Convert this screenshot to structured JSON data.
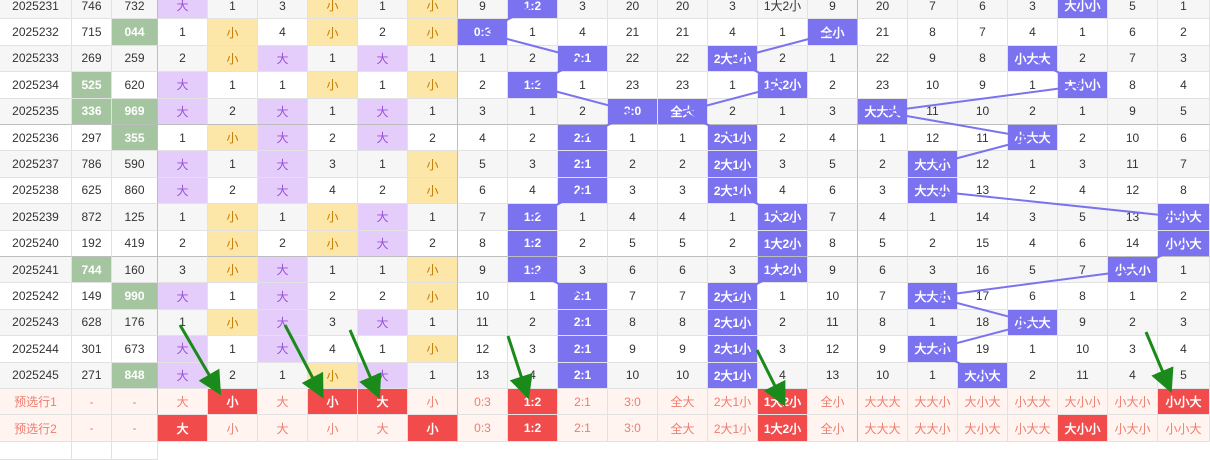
{
  "rows": [
    {
      "label": "2025231",
      "v1": "746",
      "v2": "732",
      "cells": [
        "大",
        "1",
        "3",
        "小",
        "1",
        "小",
        "9",
        "1:2",
        "3",
        "20",
        "20",
        "3",
        "1大2小",
        "9",
        "20",
        "7",
        "6",
        "3",
        "大小小",
        "5",
        "1"
      ]
    },
    {
      "label": "2025232",
      "v1": "715",
      "v2": "044",
      "cells": [
        "1",
        "小",
        "4",
        "小",
        "2",
        "小",
        "0:3",
        "1",
        "4",
        "21",
        "21",
        "4",
        "1",
        "全小",
        "21",
        "8",
        "7",
        "4",
        "1",
        "6",
        "2"
      ]
    },
    {
      "label": "2025233",
      "v1": "269",
      "v2": "259",
      "cells": [
        "2",
        "小",
        "大",
        "1",
        "大",
        "1",
        "1",
        "2",
        "2:1",
        "22",
        "22",
        "2大1小",
        "2",
        "1",
        "22",
        "9",
        "8",
        "小大大",
        "2",
        "7",
        "3"
      ]
    },
    {
      "label": "2025234",
      "v1": "525",
      "v2": "620",
      "cells": [
        "大",
        "1",
        "1",
        "小",
        "1",
        "小",
        "2",
        "1:2",
        "1",
        "23",
        "23",
        "1",
        "1大2小",
        "2",
        "23",
        "10",
        "9",
        "1",
        "大小小",
        "8",
        "4"
      ]
    },
    {
      "label": "2025235",
      "v1": "336",
      "v2": "969",
      "cells": [
        "大",
        "2",
        "大",
        "1",
        "大",
        "1",
        "3",
        "1",
        "2",
        "3:0",
        "全大",
        "2",
        "1",
        "3",
        "大大大",
        "11",
        "10",
        "2",
        "1",
        "9",
        "5"
      ]
    },
    {
      "label": "2025236",
      "v1": "297",
      "v2": "355",
      "cells": [
        "1",
        "小",
        "大",
        "2",
        "大",
        "2",
        "4",
        "2",
        "2:1",
        "1",
        "1",
        "2大1小",
        "2",
        "4",
        "1",
        "12",
        "11",
        "小大大",
        "2",
        "10",
        "6"
      ]
    },
    {
      "label": "2025237",
      "v1": "786",
      "v2": "590",
      "cells": [
        "大",
        "1",
        "大",
        "3",
        "1",
        "小",
        "5",
        "3",
        "2:1",
        "2",
        "2",
        "2大1小",
        "3",
        "5",
        "2",
        "大大小",
        "12",
        "1",
        "3",
        "11",
        "7"
      ]
    },
    {
      "label": "2025238",
      "v1": "625",
      "v2": "860",
      "cells": [
        "大",
        "2",
        "大",
        "4",
        "2",
        "小",
        "6",
        "4",
        "2:1",
        "3",
        "3",
        "2大1小",
        "4",
        "6",
        "3",
        "大大小",
        "13",
        "2",
        "4",
        "12",
        "8"
      ]
    },
    {
      "label": "2025239",
      "v1": "872",
      "v2": "125",
      "cells": [
        "1",
        "小",
        "1",
        "小",
        "大",
        "1",
        "7",
        "1:2",
        "1",
        "4",
        "4",
        "1",
        "1大2小",
        "7",
        "4",
        "1",
        "14",
        "3",
        "5",
        "13",
        "小小大"
      ]
    },
    {
      "label": "2025240",
      "v1": "192",
      "v2": "419",
      "cells": [
        "2",
        "小",
        "2",
        "小",
        "大",
        "2",
        "8",
        "1:2",
        "2",
        "5",
        "5",
        "2",
        "1大2小",
        "8",
        "5",
        "2",
        "15",
        "4",
        "6",
        "14",
        "小小大"
      ]
    },
    {
      "label": "2025241",
      "v1": "744",
      "v2": "160",
      "cells": [
        "3",
        "小",
        "大",
        "1",
        "1",
        "小",
        "9",
        "1:2",
        "3",
        "6",
        "6",
        "3",
        "1大2小",
        "9",
        "6",
        "3",
        "16",
        "5",
        "7",
        "小大小",
        "1"
      ]
    },
    {
      "label": "2025242",
      "v1": "149",
      "v2": "990",
      "cells": [
        "大",
        "1",
        "大",
        "2",
        "2",
        "小",
        "10",
        "1",
        "2:1",
        "7",
        "7",
        "2大1小",
        "1",
        "10",
        "7",
        "大大小",
        "17",
        "6",
        "8",
        "1",
        "2"
      ]
    },
    {
      "label": "2025243",
      "v1": "628",
      "v2": "176",
      "cells": [
        "1",
        "小",
        "大",
        "3",
        "大",
        "1",
        "11",
        "2",
        "2:1",
        "8",
        "8",
        "2大1小",
        "2",
        "11",
        "8",
        "1",
        "18",
        "小大大",
        "9",
        "2",
        "3"
      ]
    },
    {
      "label": "2025244",
      "v1": "301",
      "v2": "673",
      "cells": [
        "大",
        "1",
        "大",
        "4",
        "1",
        "小",
        "12",
        "3",
        "2:1",
        "9",
        "9",
        "2大1小",
        "3",
        "12",
        "9",
        "大大小",
        "19",
        "1",
        "10",
        "3",
        "4"
      ]
    },
    {
      "label": "2025245",
      "v1": "271",
      "v2": "848",
      "cells": [
        "大",
        "2",
        "1",
        "小",
        "大",
        "1",
        "13",
        "4",
        "2:1",
        "10",
        "10",
        "2大1小",
        "4",
        "13",
        "10",
        "1",
        "大小大",
        "2",
        "11",
        "4",
        "5"
      ]
    }
  ],
  "prediction_rows": [
    {
      "label": "预选行1",
      "v1": "-",
      "v2": "-",
      "cells": [
        "大",
        "小",
        "大",
        "小",
        "大",
        "小",
        "0:3",
        "1:2",
        "2:1",
        "3:0",
        "全大",
        "2大1小",
        "1大2小",
        "全小",
        "大大大",
        "大大小",
        "大小大",
        "小大大",
        "大小小",
        "小大小",
        "小小大"
      ]
    },
    {
      "label": "预选行2",
      "v1": "-",
      "v2": "-",
      "cells": [
        "大",
        "小",
        "大",
        "小",
        "大",
        "小",
        "0:3",
        "1:2",
        "2:1",
        "3:0",
        "全大",
        "2大1小",
        "1大2小",
        "全小",
        "大大大",
        "大大小",
        "大小大",
        "小大大",
        "大小小",
        "小大小",
        "小小大"
      ]
    }
  ],
  "colors": {
    "yellow": "#fde7a8",
    "lavender": "#e4cdfb",
    "blue": "#7b72f0",
    "green": "#a4c59f",
    "red": "#f24b4b",
    "arrow": "#1a8a1a",
    "line": "#7b72f0"
  }
}
